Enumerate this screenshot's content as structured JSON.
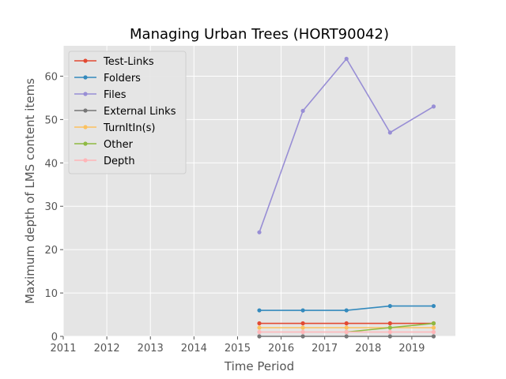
{
  "chart_data": {
    "type": "line",
    "title": "Managing Urban Trees (HORT90042)",
    "xlabel": "Time Period",
    "ylabel": "Maximum depth of LMS content items",
    "xlim": [
      2011,
      2020
    ],
    "ylim": [
      0,
      67
    ],
    "xticks": [
      2011,
      2012,
      2013,
      2014,
      2015,
      2016,
      2017,
      2018,
      2019
    ],
    "yticks": [
      0,
      10,
      20,
      30,
      40,
      50,
      60
    ],
    "grid": true,
    "legend_position": "upper-left",
    "x": [
      2015.5,
      2016.5,
      2017.5,
      2018.5,
      2019.5
    ],
    "series": [
      {
        "name": "Test-Links",
        "color": "#E24A33",
        "values": [
          3,
          3,
          3,
          3,
          3
        ]
      },
      {
        "name": "Folders",
        "color": "#348ABD",
        "values": [
          6,
          6,
          6,
          7,
          7
        ]
      },
      {
        "name": "Files",
        "color": "#988ED5",
        "values": [
          24,
          52,
          64,
          47,
          53
        ]
      },
      {
        "name": "External Links",
        "color": "#777777",
        "values": [
          0,
          0,
          0,
          0,
          0
        ]
      },
      {
        "name": "TurnItIn(s)",
        "color": "#FBC15E",
        "values": [
          2,
          2,
          2,
          2,
          2
        ]
      },
      {
        "name": "Other",
        "color": "#8EBA42",
        "values": [
          null,
          null,
          1,
          2,
          3
        ]
      },
      {
        "name": "Depth",
        "color": "#FFB5B8",
        "values": [
          1,
          1,
          1,
          1,
          1
        ]
      }
    ]
  }
}
